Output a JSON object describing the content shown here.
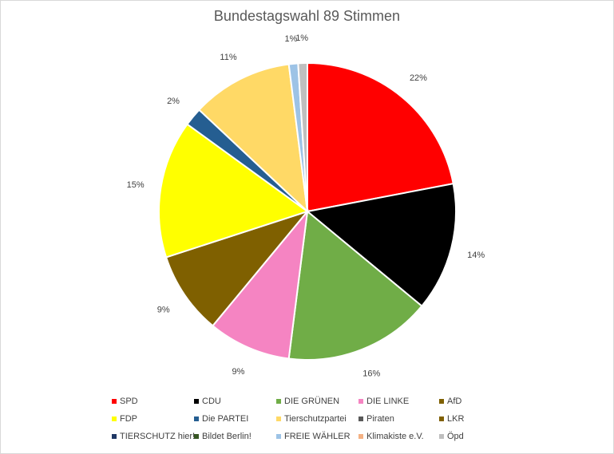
{
  "chart_data": {
    "type": "pie",
    "title": "Bundestagswahl 89 Stimmen",
    "slices": [
      {
        "name": "SPD",
        "value": 22,
        "label": "22%",
        "color": "#ff0000"
      },
      {
        "name": "CDU",
        "value": 14,
        "label": "14%",
        "color": "#000000"
      },
      {
        "name": "DIE GRÜNEN",
        "value": 16,
        "label": "16%",
        "color": "#70ad47"
      },
      {
        "name": "DIE LINKE",
        "value": 9,
        "label": "9%",
        "color": "#f584c2"
      },
      {
        "name": "AfD",
        "value": 9,
        "label": "9%",
        "color": "#7f6000"
      },
      {
        "name": "FDP",
        "value": 15,
        "label": "15%",
        "color": "#ffff00"
      },
      {
        "name": "Die PARTEI",
        "value": 2,
        "label": "2%",
        "color": "#255e91"
      },
      {
        "name": "Tierschutzpartei",
        "value": 11,
        "label": "11%",
        "color": "#ffd966"
      },
      {
        "name": "Piraten",
        "value": 0,
        "label": "",
        "color": "#595959"
      },
      {
        "name": "LKR",
        "value": 0,
        "label": "",
        "color": "#806000"
      },
      {
        "name": "TIERSCHUTZ hier!",
        "value": 0,
        "label": "",
        "color": "#203864"
      },
      {
        "name": "Bildet Berlin!",
        "value": 0,
        "label": "",
        "color": "#375623"
      },
      {
        "name": "FREIE WÄHLER",
        "value": 1,
        "label": "1%",
        "color": "#9dc3e6"
      },
      {
        "name": "Klimakiste e.V.",
        "value": 0,
        "label": "",
        "color": "#f4b183"
      },
      {
        "name": "Öpd",
        "value": 1,
        "label": "1%",
        "color": "#bfbfbf"
      }
    ],
    "legend": "bottom"
  }
}
